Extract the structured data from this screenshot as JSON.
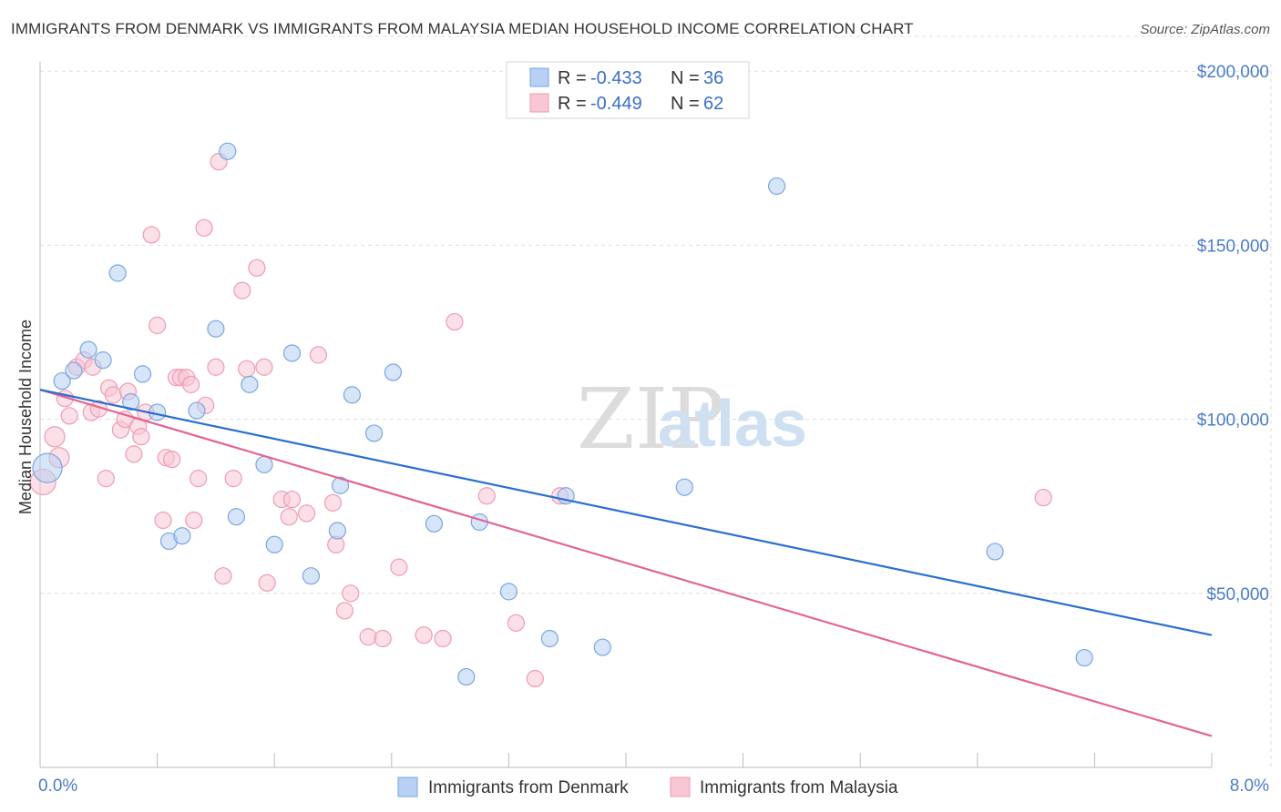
{
  "title": "IMMIGRANTS FROM DENMARK VS IMMIGRANTS FROM MALAYSIA MEDIAN HOUSEHOLD INCOME CORRELATION CHART",
  "source": "Source: ZipAtlas.com",
  "watermark": {
    "zip": "ZIP",
    "atlas": "atlas"
  },
  "colors": {
    "denmark_fill": "#b7d0f3",
    "denmark_stroke": "#7aa6e0",
    "denmark_line": "#2a6fd0",
    "malaysia_fill": "#f9c6d4",
    "malaysia_stroke": "#ee9bb4",
    "malaysia_line": "#e26592",
    "tick_text": "#4a7cc9",
    "grid": "#dddddd"
  },
  "legend": {
    "rows": [
      {
        "r_label": "R =",
        "r_value": "-0.433",
        "n_label": "N =",
        "n_value": "36"
      },
      {
        "r_label": "R =",
        "r_value": "-0.449",
        "n_label": "N =",
        "n_value": "62"
      }
    ]
  },
  "chart_data": {
    "type": "scatter",
    "title": "IMMIGRANTS FROM DENMARK VS IMMIGRANTS FROM MALAYSIA MEDIAN HOUSEHOLD INCOME CORRELATION CHART",
    "xlabel": "",
    "ylabel": "Median Household Income",
    "xlim": [
      0,
      8
    ],
    "ylim": [
      0,
      210000
    ],
    "x_tick_labels": [
      "0.0%",
      "8.0%"
    ],
    "y_ticks": [
      50000,
      100000,
      150000,
      200000
    ],
    "y_tick_labels": [
      "$50,000",
      "$100,000",
      "$150,000",
      "$200,000"
    ],
    "grid": true,
    "legend_position": "top-center",
    "series": [
      {
        "name": "Immigrants from Denmark",
        "r": -0.433,
        "n": 36,
        "trend": {
          "x": [
            0,
            8
          ],
          "y": [
            108500,
            38000
          ]
        },
        "points": [
          [
            0.05,
            86000,
            16
          ],
          [
            0.15,
            111000,
            9
          ],
          [
            0.23,
            114000,
            9
          ],
          [
            0.33,
            120000,
            9
          ],
          [
            0.43,
            117000,
            9
          ],
          [
            0.53,
            142000,
            9
          ],
          [
            0.62,
            105000,
            9
          ],
          [
            0.7,
            113000,
            9
          ],
          [
            0.8,
            102000,
            9
          ],
          [
            0.88,
            65000,
            9
          ],
          [
            0.97,
            66500,
            9
          ],
          [
            1.07,
            102500,
            9
          ],
          [
            1.2,
            126000,
            9
          ],
          [
            1.28,
            177000,
            9
          ],
          [
            1.34,
            72000,
            9
          ],
          [
            1.43,
            110000,
            9
          ],
          [
            1.53,
            87000,
            9
          ],
          [
            1.6,
            64000,
            9
          ],
          [
            1.72,
            119000,
            9
          ],
          [
            1.85,
            55000,
            9
          ],
          [
            2.03,
            68000,
            9
          ],
          [
            2.05,
            81000,
            9
          ],
          [
            2.13,
            107000,
            9
          ],
          [
            2.28,
            96000,
            9
          ],
          [
            2.41,
            113500,
            9
          ],
          [
            2.69,
            70000,
            9
          ],
          [
            2.91,
            26000,
            9
          ],
          [
            3.0,
            70500,
            9
          ],
          [
            3.2,
            50500,
            9
          ],
          [
            3.48,
            37000,
            9
          ],
          [
            3.59,
            78000,
            9
          ],
          [
            3.84,
            34500,
            9
          ],
          [
            4.4,
            80500,
            9
          ],
          [
            5.03,
            167000,
            9
          ],
          [
            6.52,
            62000,
            9
          ],
          [
            7.13,
            31500,
            9
          ]
        ]
      },
      {
        "name": "Immigrants from Malaysia",
        "r": -0.449,
        "n": 62,
        "trend": {
          "x": [
            0,
            8
          ],
          "y": [
            108500,
            9000
          ]
        },
        "points": [
          [
            0.02,
            82000,
            14
          ],
          [
            0.1,
            95000,
            11
          ],
          [
            0.13,
            89000,
            11
          ],
          [
            0.17,
            106000,
            9
          ],
          [
            0.2,
            101000,
            9
          ],
          [
            0.25,
            115000,
            9
          ],
          [
            0.3,
            117000,
            9
          ],
          [
            0.35,
            102000,
            9
          ],
          [
            0.36,
            115000,
            9
          ],
          [
            0.4,
            103000,
            9
          ],
          [
            0.45,
            83000,
            9
          ],
          [
            0.47,
            109000,
            9
          ],
          [
            0.5,
            107000,
            9
          ],
          [
            0.55,
            97000,
            9
          ],
          [
            0.58,
            100000,
            9
          ],
          [
            0.6,
            108000,
            9
          ],
          [
            0.64,
            90000,
            9
          ],
          [
            0.67,
            98000,
            9
          ],
          [
            0.69,
            95000,
            9
          ],
          [
            0.72,
            102000,
            9
          ],
          [
            0.76,
            153000,
            9
          ],
          [
            0.8,
            127000,
            9
          ],
          [
            0.84,
            71000,
            9
          ],
          [
            0.86,
            89000,
            9
          ],
          [
            0.9,
            88500,
            9
          ],
          [
            0.93,
            112000,
            9
          ],
          [
            0.96,
            112000,
            9
          ],
          [
            1.0,
            112000,
            9
          ],
          [
            1.03,
            110000,
            9
          ],
          [
            1.05,
            71000,
            9
          ],
          [
            1.08,
            83000,
            9
          ],
          [
            1.12,
            155000,
            9
          ],
          [
            1.13,
            104000,
            9
          ],
          [
            1.2,
            115000,
            9
          ],
          [
            1.22,
            174000,
            9
          ],
          [
            1.25,
            55000,
            9
          ],
          [
            1.32,
            83000,
            9
          ],
          [
            1.38,
            137000,
            9
          ],
          [
            1.41,
            114500,
            9
          ],
          [
            1.48,
            143500,
            9
          ],
          [
            1.53,
            115000,
            9
          ],
          [
            1.55,
            53000,
            9
          ],
          [
            1.65,
            77000,
            9
          ],
          [
            1.7,
            72000,
            9
          ],
          [
            1.72,
            77000,
            9
          ],
          [
            1.82,
            73000,
            9
          ],
          [
            1.9,
            118500,
            9
          ],
          [
            2.0,
            76000,
            9
          ],
          [
            2.02,
            64000,
            9
          ],
          [
            2.08,
            45000,
            9
          ],
          [
            2.12,
            50000,
            9
          ],
          [
            2.24,
            37500,
            9
          ],
          [
            2.34,
            37000,
            9
          ],
          [
            2.45,
            57500,
            9
          ],
          [
            2.62,
            38000,
            9
          ],
          [
            2.75,
            37000,
            9
          ],
          [
            2.83,
            128000,
            9
          ],
          [
            3.05,
            78000,
            9
          ],
          [
            3.25,
            41500,
            9
          ],
          [
            3.38,
            25500,
            9
          ],
          [
            3.55,
            78000,
            9
          ],
          [
            6.85,
            77500,
            9
          ]
        ]
      }
    ]
  }
}
